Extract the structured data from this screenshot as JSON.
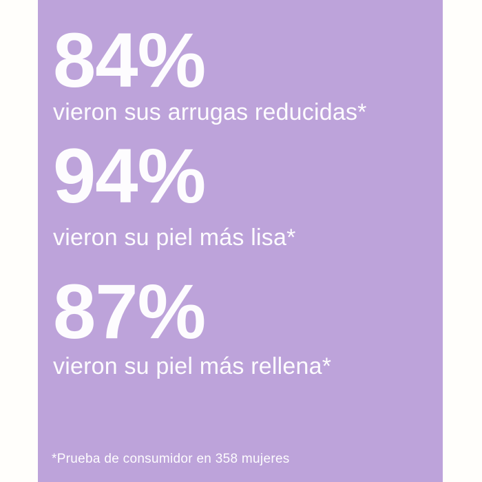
{
  "colors": {
    "page-bg": "#fffefb",
    "panel-bg": "#bda3da",
    "text": "#fdfcfe"
  },
  "stats": [
    {
      "value": "84%",
      "label": "vieron sus arrugas reducidas*"
    },
    {
      "value": "94%",
      "label": "vieron su piel más lisa*"
    },
    {
      "value": "87%",
      "label": "vieron su piel más rellena*"
    }
  ],
  "footnote": {
    "text": "*Prueba de consumidor en 358 mujeres"
  }
}
